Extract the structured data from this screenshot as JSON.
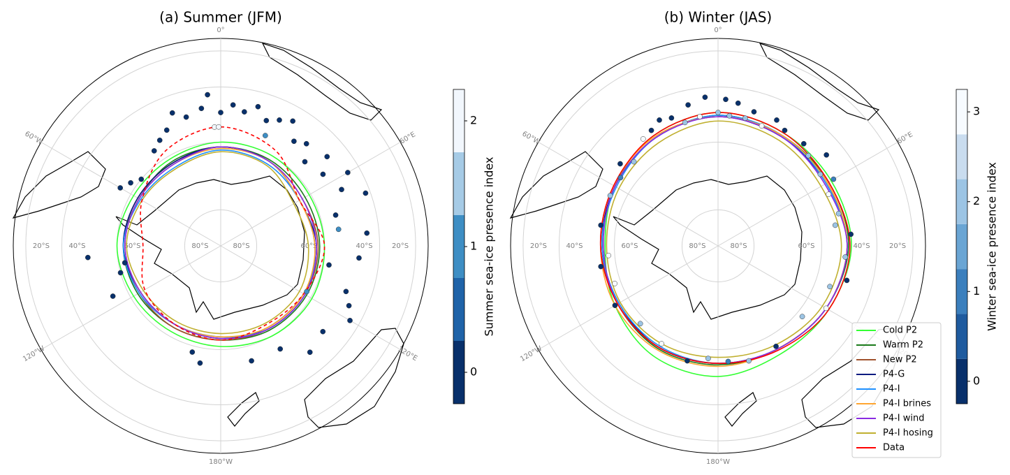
{
  "chart_data": [
    {
      "type": "polar-map",
      "title": "(a) Summer (JFM)",
      "lon_ticks": [
        {
          "value": 0,
          "label": "0°"
        },
        {
          "value": 60,
          "label": "60°E"
        },
        {
          "value": 120,
          "label": "120°E"
        },
        {
          "value": 180,
          "label": "180°W"
        },
        {
          "value": -120,
          "label": "120°W"
        },
        {
          "value": -60,
          "label": "60°W"
        }
      ],
      "lat_ticks": [
        {
          "value": -20,
          "label": "20°S"
        },
        {
          "value": -40,
          "label": "40°S"
        },
        {
          "value": -60,
          "label": "60°S"
        },
        {
          "value": -80,
          "label": "80°S"
        }
      ],
      "colorbar": {
        "label": "Summer sea-ice presence index",
        "clim": [
          -0.25,
          2.25
        ],
        "ticks": [
          0,
          1,
          2
        ],
        "colors": [
          "#08306b",
          "#1f63a8",
          "#3e8ec4",
          "#a6cbe6",
          "#f2f7fd"
        ]
      },
      "points": {
        "lon": [
          -5,
          -8,
          0,
          5,
          10,
          -15,
          -20,
          -25,
          -30,
          -35,
          15,
          20,
          25,
          30,
          35,
          40,
          45,
          50,
          55,
          60,
          65,
          70,
          75,
          85,
          95,
          100,
          110,
          115,
          120,
          130,
          140,
          150,
          165,
          -170,
          -165,
          -115,
          -105,
          -100,
          -95,
          -60,
          -55,
          -50,
          -3,
          -1,
          22,
          82,
          118
        ],
        "lat": [
          -43,
          -48,
          -50,
          -47,
          -49,
          -50,
          -47,
          -52,
          -54,
          -56,
          -46,
          -50,
          -48,
          -46,
          -52,
          -50,
          -55,
          -48,
          -53,
          -45,
          -50,
          -42,
          -55,
          -45,
          -48,
          -58,
          -50,
          -47,
          -44,
          -50,
          -48,
          -55,
          -55,
          -55,
          -58,
          -55,
          -60,
          -62,
          -50,
          -56,
          -58,
          -60,
          -55,
          -55,
          -55,
          -55,
          -62
        ],
        "index": [
          0,
          0,
          0,
          0,
          0,
          0,
          0,
          0,
          0,
          0,
          0,
          0,
          0,
          0,
          0,
          0,
          0,
          0,
          0,
          0,
          0,
          0,
          0,
          0,
          0,
          0,
          0,
          0,
          0,
          0,
          0,
          0,
          0,
          0,
          0,
          0,
          0,
          0,
          0,
          0,
          0,
          0,
          2,
          2,
          1,
          1,
          1
        ]
      },
      "edge_lon": [
        0,
        30,
        60,
        90,
        120,
        150,
        180,
        210,
        240,
        270,
        300,
        330
      ],
      "series": [
        {
          "color": "#33ff33",
          "lat": [
            -60,
            -60,
            -60.5,
            -60,
            -59.5,
            -60,
            -61,
            -61.5,
            -61,
            -60,
            -61,
            -61
          ]
        },
        {
          "color": "#1a7a1a",
          "lat": [
            -61.5,
            -61.5,
            -62,
            -61.5,
            -61.5,
            -62,
            -63,
            -63,
            -62.5,
            -62,
            -63,
            -62
          ]
        },
        {
          "color": "#a0522d",
          "lat": [
            -61.5,
            -62,
            -63,
            -62,
            -62,
            -62.5,
            -63,
            -63,
            -63,
            -62,
            -62.5,
            -62.5
          ]
        },
        {
          "color": "#0a1a80",
          "lat": [
            -61.5,
            -62,
            -64,
            -62.5,
            -62.5,
            -63,
            -63.5,
            -64,
            -63.5,
            -62,
            -62.5,
            -62.5
          ]
        },
        {
          "color": "#1e90ff",
          "lat": [
            -62.5,
            -63,
            -64,
            -63,
            -62,
            -62.5,
            -64,
            -64,
            -63,
            -62,
            -63.5,
            -64
          ]
        },
        {
          "color": "#ffa530",
          "lat": [
            -62,
            -62,
            -64,
            -63,
            -62.5,
            -63,
            -64,
            -64,
            -63.5,
            -62.5,
            -63,
            -63
          ]
        },
        {
          "color": "#8a2be2",
          "lat": [
            -61.5,
            -62,
            -63,
            -62.5,
            -62,
            -62.5,
            -63.5,
            -64,
            -63.5,
            -62.5,
            -63,
            -63
          ]
        },
        {
          "color": "#c0b030",
          "lat": [
            -63,
            -63.5,
            -66,
            -65,
            -64,
            -64.5,
            -65,
            -65,
            -64.5,
            -63,
            -64,
            -64.5
          ]
        },
        {
          "color": "#ff0000",
          "dashed": true,
          "lat": [
            -55,
            -58,
            -64,
            -60,
            -62.5,
            -64,
            -63,
            -64,
            -65,
            -68,
            -64,
            -58
          ]
        }
      ]
    },
    {
      "type": "polar-map",
      "title": "(b) Winter (JAS)",
      "lon_ticks": [
        {
          "value": 0,
          "label": "0°"
        },
        {
          "value": 60,
          "label": "60°E"
        },
        {
          "value": 120,
          "label": "120°E"
        },
        {
          "value": 180,
          "label": "180°W"
        },
        {
          "value": -120,
          "label": "120°W"
        },
        {
          "value": -60,
          "label": "60°W"
        }
      ],
      "lat_ticks": [
        {
          "value": -20,
          "label": "20°S"
        },
        {
          "value": -40,
          "label": "40°S"
        },
        {
          "value": -60,
          "label": "60°S"
        },
        {
          "value": -80,
          "label": "80°S"
        }
      ],
      "colorbar": {
        "label": "Winter sea-ice presence index",
        "clim": [
          -0.25,
          3.25
        ],
        "ticks": [
          0,
          1,
          2,
          3
        ],
        "colors": [
          "#08306b",
          "#1f5b9f",
          "#3b7fbd",
          "#6aa5d4",
          "#9cc4e4",
          "#c9dcef",
          "#f7fbff"
        ]
      },
      "points": {
        "lon": [
          -5,
          3,
          8,
          -12,
          15,
          -20,
          -25,
          25,
          30,
          -30,
          0,
          5,
          -8,
          12,
          -15,
          20,
          -35,
          40,
          45,
          50,
          55,
          60,
          65,
          75,
          80,
          85,
          95,
          105,
          110,
          120,
          130,
          150,
          165,
          175,
          -175,
          -165,
          -150,
          -135,
          -120,
          -110,
          -100,
          -95,
          -80,
          -65,
          -55,
          -50,
          -45
        ],
        "lat": [
          -44,
          -45,
          -46,
          -46,
          -48,
          -49,
          -48,
          -48,
          -50,
          -50,
          -50,
          -51,
          -51,
          -51,
          -52,
          -52,
          -51,
          -50,
          -52,
          -47,
          -53,
          -50,
          -54,
          -53,
          -55,
          -50,
          -52,
          -50,
          -55,
          -53,
          -58,
          -56,
          -55,
          -56,
          -57,
          -55,
          -57,
          -58,
          -55,
          -58,
          -55,
          -58,
          -55,
          -55,
          -55,
          -52,
          -55
        ],
        "index": [
          0,
          0,
          0,
          0,
          0,
          0,
          0,
          0,
          0,
          0,
          2,
          2,
          3,
          2,
          2,
          3,
          3,
          0,
          2,
          0,
          2,
          1,
          3,
          2,
          2,
          0,
          2,
          0,
          2,
          3,
          2,
          0,
          2,
          1,
          2,
          0,
          3,
          2,
          0,
          3,
          0,
          3,
          0,
          2,
          1,
          0,
          2
        ]
      },
      "edge_lon": [
        0,
        30,
        60,
        90,
        120,
        150,
        180,
        210,
        240,
        270,
        300,
        330
      ],
      "legend": "lower right",
      "series": [
        {
          "name": "Cold P2",
          "color": "#33ff33",
          "lat": [
            -50,
            -51,
            -51,
            -50,
            -52,
            -53,
            -51,
            -52,
            -55,
            -57,
            -55,
            -52
          ]
        },
        {
          "name": "Warm P2",
          "color": "#1a7a1a",
          "lat": [
            -51,
            -52,
            -52,
            -51,
            -53,
            -55,
            -55,
            -55,
            -56,
            -56,
            -55,
            -53
          ]
        },
        {
          "name": "New P2",
          "color": "#a0522d",
          "lat": [
            -51,
            -52,
            -52.5,
            -51.5,
            -53,
            -55,
            -55.5,
            -55.5,
            -56,
            -56,
            -55,
            -53
          ]
        },
        {
          "name": "P4-G",
          "color": "#0a1a80",
          "lat": [
            -51.5,
            -52.5,
            -53,
            -51.5,
            -53,
            -55,
            -55.5,
            -55.5,
            -56.5,
            -56,
            -55,
            -53
          ]
        },
        {
          "name": "P4-I",
          "color": "#1e90ff",
          "lat": [
            -51,
            -52,
            -53,
            -51.5,
            -53,
            -55,
            -55.5,
            -56,
            -56.5,
            -56,
            -55.5,
            -53
          ]
        },
        {
          "name": "P4-I brines",
          "color": "#ffa530",
          "lat": [
            -51.5,
            -52,
            -52.5,
            -51.5,
            -53,
            -55,
            -54.5,
            -54.5,
            -55,
            -55.5,
            -54.5,
            -52.5
          ]
        },
        {
          "name": "P4-I wind",
          "color": "#8a2be2",
          "lat": [
            -51.5,
            -52.5,
            -53.5,
            -51.5,
            -53,
            -55,
            -55.5,
            -55.5,
            -56,
            -56.5,
            -55,
            -53
          ]
        },
        {
          "name": "P4-I hosing",
          "color": "#c0b030",
          "lat": [
            -53,
            -54,
            -55,
            -53.5,
            -54.5,
            -56.5,
            -57.5,
            -57,
            -57,
            -57.5,
            -56.5,
            -55
          ]
        },
        {
          "name": "Data",
          "color": "#ff0000",
          "lat": [
            -50,
            -51,
            -52,
            -50.5,
            -52,
            -54.5,
            -55.5,
            -55.5,
            -56,
            -55.5,
            -54.5,
            -52
          ]
        }
      ]
    }
  ]
}
